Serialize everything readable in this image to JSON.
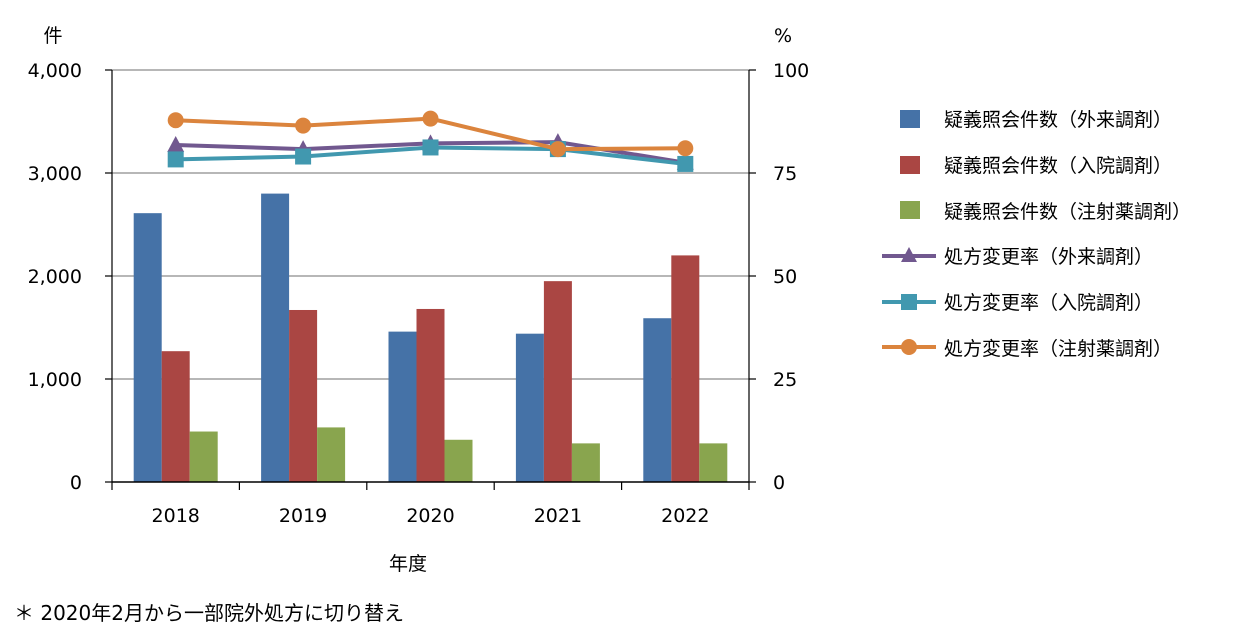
{
  "chart_data": {
    "type": "bar+line",
    "categories": [
      "2018",
      "2019",
      "2020",
      "2021",
      "2022"
    ],
    "xlabel": "年度",
    "y_left": {
      "unit_label": "件",
      "range": [
        0,
        4000
      ],
      "ticks": [
        "0",
        "1,000",
        "2,000",
        "3,000",
        "4,000"
      ],
      "tick_values": [
        0,
        1000,
        2000,
        3000,
        4000
      ]
    },
    "y_right": {
      "unit_label": "%",
      "range": [
        0,
        100
      ],
      "ticks": [
        "0",
        "25",
        "50",
        "75",
        "100"
      ],
      "tick_values": [
        0,
        25,
        50,
        75,
        100
      ]
    },
    "grid": true,
    "legend_position": "right",
    "bar_series": [
      {
        "name": "疑義照会件数（外来調剤）",
        "color": "#4572A7",
        "values": [
          2610,
          2800,
          1460,
          1440,
          1590
        ]
      },
      {
        "name": "疑義照会件数（入院調剤）",
        "color": "#AA4643",
        "values": [
          1270,
          1670,
          1680,
          1950,
          2200
        ]
      },
      {
        "name": "疑義照会件数（注射薬調剤）",
        "color": "#89A54E",
        "values": [
          490,
          530,
          410,
          375,
          375
        ]
      }
    ],
    "line_series": [
      {
        "name": "処方変更率（外来調剤）",
        "color": "#71588F",
        "marker": "triangle",
        "values": [
          81.8,
          80.8,
          82.2,
          82.5,
          77.5
        ]
      },
      {
        "name": "処方変更率（入院調剤）",
        "color": "#4198AF",
        "marker": "square",
        "values": [
          78.3,
          79.0,
          81.2,
          80.8,
          77.2
        ]
      },
      {
        "name": "処方変更率（注射薬調剤）",
        "color": "#DB843D",
        "marker": "circle",
        "values": [
          87.8,
          86.5,
          88.2,
          80.8,
          81.0
        ]
      }
    ]
  },
  "note": "＊ 2020年2月から一部院外処方に切り替え"
}
